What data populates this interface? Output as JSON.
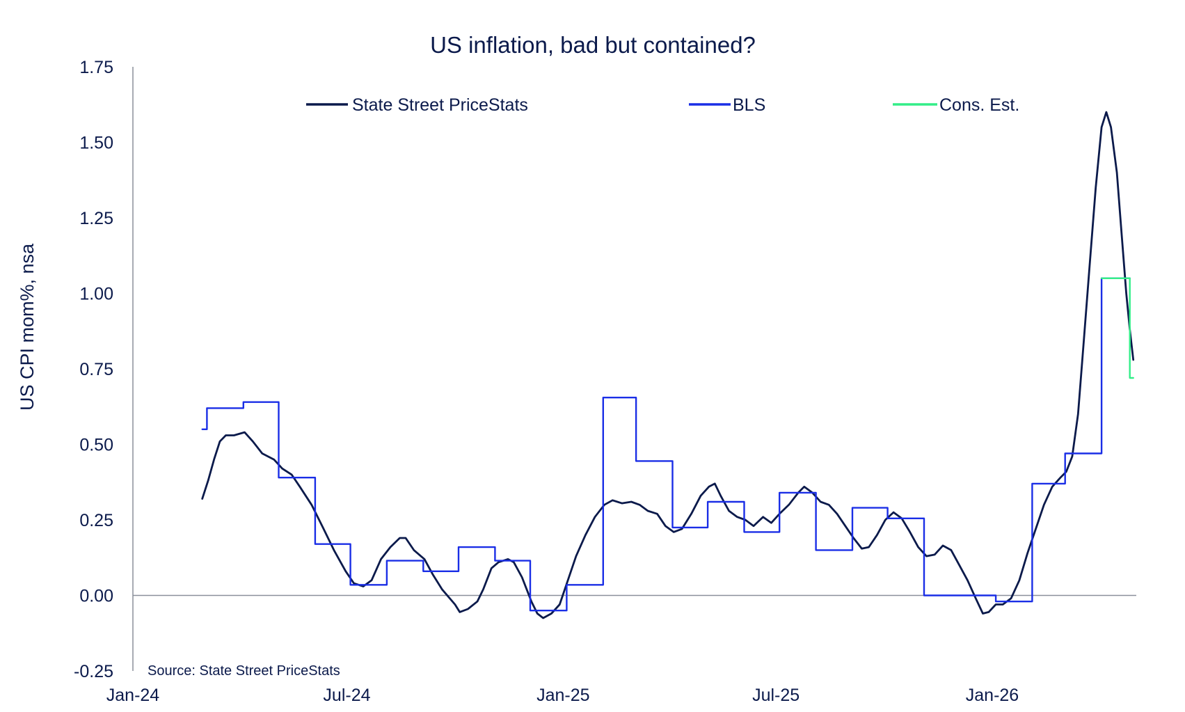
{
  "chart_data": {
    "type": "line",
    "title": "US inflation, bad but contained?",
    "ylabel": "US CPI mom%, nsa",
    "xlabel": "",
    "ylim": [
      -0.25,
      1.75
    ],
    "xlim": [
      "2024-01-01",
      "2026-05-01"
    ],
    "yticks": [
      "1.75",
      "1.50",
      "1.25",
      "1.00",
      "0.75",
      "0.50",
      "0.25",
      "0.00",
      "-0.25"
    ],
    "xticks": [
      "Jan-24",
      "Jul-24",
      "Jan-25",
      "Jul-25",
      "Jan-26"
    ],
    "legend_position": "top",
    "grid": false,
    "source": "Source: State Street PriceStats",
    "series": [
      {
        "name": "State Street PriceStats",
        "color": "#0b1a4b",
        "style": "smooth-line",
        "points": [
          [
            "2024-02-29",
            0.32
          ],
          [
            "2024-03-05",
            0.38
          ],
          [
            "2024-03-10",
            0.45
          ],
          [
            "2024-03-15",
            0.51
          ],
          [
            "2024-03-20",
            0.53
          ],
          [
            "2024-03-27",
            0.53
          ],
          [
            "2024-04-05",
            0.54
          ],
          [
            "2024-04-12",
            0.51
          ],
          [
            "2024-04-20",
            0.47
          ],
          [
            "2024-04-30",
            0.45
          ],
          [
            "2024-05-07",
            0.42
          ],
          [
            "2024-05-15",
            0.4
          ],
          [
            "2024-05-22",
            0.36
          ],
          [
            "2024-06-01",
            0.3
          ],
          [
            "2024-06-10",
            0.23
          ],
          [
            "2024-06-20",
            0.15
          ],
          [
            "2024-06-30",
            0.08
          ],
          [
            "2024-07-07",
            0.04
          ],
          [
            "2024-07-15",
            0.03
          ],
          [
            "2024-07-22",
            0.05
          ],
          [
            "2024-07-30",
            0.12
          ],
          [
            "2024-08-07",
            0.16
          ],
          [
            "2024-08-15",
            0.19
          ],
          [
            "2024-08-20",
            0.19
          ],
          [
            "2024-08-27",
            0.15
          ],
          [
            "2024-09-05",
            0.12
          ],
          [
            "2024-09-12",
            0.07
          ],
          [
            "2024-09-20",
            0.02
          ],
          [
            "2024-10-01",
            -0.03
          ],
          [
            "2024-10-05",
            -0.055
          ],
          [
            "2024-10-12",
            -0.045
          ],
          [
            "2024-10-20",
            -0.02
          ],
          [
            "2024-10-25",
            0.02
          ],
          [
            "2024-11-01",
            0.09
          ],
          [
            "2024-11-07",
            0.11
          ],
          [
            "2024-11-15",
            0.12
          ],
          [
            "2024-11-20",
            0.11
          ],
          [
            "2024-11-27",
            0.06
          ],
          [
            "2024-12-05",
            -0.02
          ],
          [
            "2024-12-10",
            -0.06
          ],
          [
            "2024-12-15",
            -0.075
          ],
          [
            "2024-12-22",
            -0.06
          ],
          [
            "2024-12-29",
            -0.03
          ],
          [
            "2025-01-05",
            0.05
          ],
          [
            "2025-01-12",
            0.13
          ],
          [
            "2025-01-20",
            0.2
          ],
          [
            "2025-01-28",
            0.26
          ],
          [
            "2025-02-05",
            0.3
          ],
          [
            "2025-02-12",
            0.315
          ],
          [
            "2025-02-20",
            0.305
          ],
          [
            "2025-02-28",
            0.31
          ],
          [
            "2025-03-07",
            0.3
          ],
          [
            "2025-03-14",
            0.28
          ],
          [
            "2025-03-22",
            0.27
          ],
          [
            "2025-03-29",
            0.23
          ],
          [
            "2025-04-05",
            0.21
          ],
          [
            "2025-04-12",
            0.22
          ],
          [
            "2025-04-20",
            0.27
          ],
          [
            "2025-04-28",
            0.33
          ],
          [
            "2025-05-05",
            0.36
          ],
          [
            "2025-05-10",
            0.37
          ],
          [
            "2025-05-15",
            0.33
          ],
          [
            "2025-05-22",
            0.28
          ],
          [
            "2025-05-29",
            0.26
          ],
          [
            "2025-06-05",
            0.25
          ],
          [
            "2025-06-12",
            0.23
          ],
          [
            "2025-06-20",
            0.26
          ],
          [
            "2025-06-27",
            0.24
          ],
          [
            "2025-07-04",
            0.27
          ],
          [
            "2025-07-12",
            0.3
          ],
          [
            "2025-07-20",
            0.34
          ],
          [
            "2025-07-25",
            0.36
          ],
          [
            "2025-08-01",
            0.34
          ],
          [
            "2025-08-08",
            0.31
          ],
          [
            "2025-08-15",
            0.3
          ],
          [
            "2025-08-22",
            0.27
          ],
          [
            "2025-08-29",
            0.23
          ],
          [
            "2025-09-05",
            0.19
          ],
          [
            "2025-09-12",
            0.155
          ],
          [
            "2025-09-18",
            0.16
          ],
          [
            "2025-09-25",
            0.2
          ],
          [
            "2025-10-02",
            0.25
          ],
          [
            "2025-10-09",
            0.275
          ],
          [
            "2025-10-16",
            0.255
          ],
          [
            "2025-10-23",
            0.21
          ],
          [
            "2025-10-30",
            0.16
          ],
          [
            "2025-11-06",
            0.13
          ],
          [
            "2025-11-13",
            0.135
          ],
          [
            "2025-11-20",
            0.165
          ],
          [
            "2025-11-27",
            0.15
          ],
          [
            "2025-12-04",
            0.1
          ],
          [
            "2025-12-11",
            0.05
          ],
          [
            "2025-12-18",
            -0.01
          ],
          [
            "2025-12-24",
            -0.06
          ],
          [
            "2025-12-29",
            -0.055
          ],
          [
            "2026-01-04",
            -0.03
          ],
          [
            "2026-01-10",
            -0.03
          ],
          [
            "2026-01-17",
            -0.01
          ],
          [
            "2026-01-24",
            0.05
          ],
          [
            "2026-01-31",
            0.14
          ],
          [
            "2026-02-07",
            0.22
          ],
          [
            "2026-02-14",
            0.3
          ],
          [
            "2026-02-21",
            0.36
          ],
          [
            "2026-02-28",
            0.39
          ],
          [
            "2026-03-05",
            0.41
          ],
          [
            "2026-03-10",
            0.46
          ],
          [
            "2026-03-15",
            0.6
          ],
          [
            "2026-03-20",
            0.85
          ],
          [
            "2026-03-25",
            1.1
          ],
          [
            "2026-03-30",
            1.35
          ],
          [
            "2026-04-04",
            1.55
          ],
          [
            "2026-04-08",
            1.6
          ],
          [
            "2026-04-12",
            1.55
          ],
          [
            "2026-04-17",
            1.4
          ],
          [
            "2026-04-21",
            1.2
          ],
          [
            "2026-04-25",
            1.0
          ],
          [
            "2026-04-28",
            0.88
          ],
          [
            "2026-05-01",
            0.78
          ]
        ]
      },
      {
        "name": "BLS",
        "color": "#1a2ee6",
        "style": "step",
        "points": [
          [
            "2024-02-29",
            0.55
          ],
          [
            "2024-03-04",
            0.62
          ],
          [
            "2024-04-04",
            0.64
          ],
          [
            "2024-05-04",
            0.39
          ],
          [
            "2024-06-04",
            0.17
          ],
          [
            "2024-07-04",
            0.035
          ],
          [
            "2024-08-04",
            0.115
          ],
          [
            "2024-09-04",
            0.08
          ],
          [
            "2024-10-04",
            0.16
          ],
          [
            "2024-11-04",
            0.115
          ],
          [
            "2024-12-04",
            -0.05
          ],
          [
            "2025-01-04",
            0.035
          ],
          [
            "2025-02-04",
            0.655
          ],
          [
            "2025-03-04",
            0.445
          ],
          [
            "2025-04-04",
            0.225
          ],
          [
            "2025-05-04",
            0.31
          ],
          [
            "2025-06-04",
            0.21
          ],
          [
            "2025-07-04",
            0.34
          ],
          [
            "2025-08-04",
            0.15
          ],
          [
            "2025-09-04",
            0.29
          ],
          [
            "2025-10-04",
            0.255
          ],
          [
            "2025-11-04",
            0.0
          ],
          [
            "2026-01-04",
            -0.02
          ],
          [
            "2026-02-04",
            0.37
          ],
          [
            "2026-03-04",
            0.47
          ],
          [
            "2026-04-04",
            1.05
          ],
          [
            "2026-04-28",
            1.05
          ]
        ]
      },
      {
        "name": "Cons. Est.",
        "color": "#33ee88",
        "style": "step",
        "points": [
          [
            "2026-04-04",
            1.05
          ],
          [
            "2026-04-28",
            0.72
          ],
          [
            "2026-05-01",
            0.72
          ]
        ]
      }
    ]
  }
}
